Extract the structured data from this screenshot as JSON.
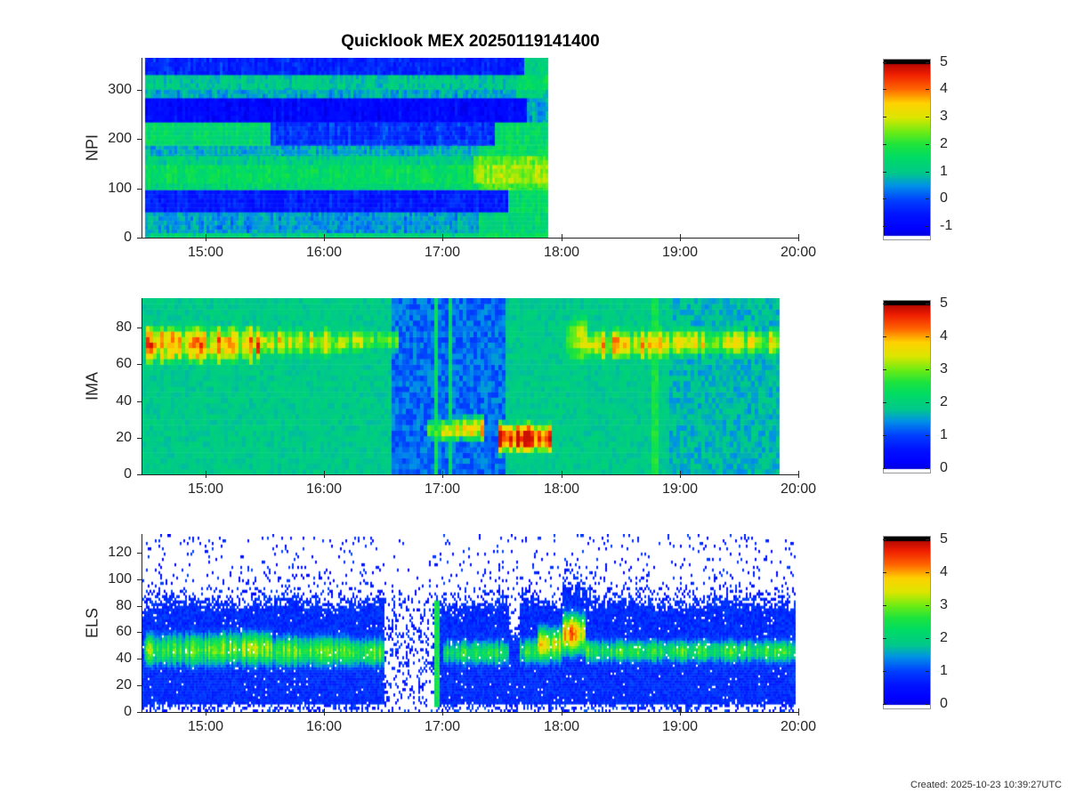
{
  "title": "Quicklook MEX 20250119141400",
  "created_note": "Created: 2025-10-23 10:39:27UTC",
  "axis_color": "#262626",
  "colormap": [
    [
      0,
      "#0000C8"
    ],
    [
      0.06,
      "#0000FF"
    ],
    [
      0.14,
      "#0014FF"
    ],
    [
      0.22,
      "#0040FF"
    ],
    [
      0.3,
      "#0090E8"
    ],
    [
      0.37,
      "#00C88C"
    ],
    [
      0.46,
      "#00DC64"
    ],
    [
      0.53,
      "#1EE43C"
    ],
    [
      0.6,
      "#6EEC14"
    ],
    [
      0.68,
      "#DCE600"
    ],
    [
      0.76,
      "#FFD200"
    ],
    [
      0.84,
      "#FF6400"
    ],
    [
      0.92,
      "#F01E00"
    ],
    [
      1,
      "#A00000"
    ]
  ],
  "x_axis": {
    "min_hour": 14.4667,
    "max_hour": 20,
    "ticks": [
      15,
      16,
      17,
      18,
      19,
      20
    ],
    "tick_labels": [
      "15:00",
      "16:00",
      "17:00",
      "18:00",
      "19:00",
      "20:00"
    ]
  },
  "chart_data": [
    {
      "type": "heatmap",
      "id": "npi",
      "ylabel": "NPI",
      "y_range": [
        0,
        364
      ],
      "y_ticks": [
        0,
        100,
        200,
        300
      ],
      "x_ticks_labels": [
        "15:00",
        "16:00",
        "17:00",
        "18:00",
        "19:00",
        "20:00"
      ],
      "data_start_hour": 14.4667,
      "data_end_hour": 17.87,
      "colorbar": {
        "ticks": [
          5,
          4,
          3,
          2,
          1,
          0,
          -1
        ],
        "vmin": -1.45,
        "vmax": 5.12
      },
      "noise": 0.3,
      "bands": [
        {
          "y0": 0,
          "y1": 10,
          "segs": [
            [
              14.47,
              17.3,
              1.25
            ],
            [
              17.3,
              17.87,
              1.6
            ]
          ]
        },
        {
          "y0": 10,
          "y1": 52,
          "segs": [
            [
              14.47,
              17.3,
              0.6
            ],
            [
              17.3,
              17.87,
              1.35
            ]
          ]
        },
        {
          "y0": 52,
          "y1": 97,
          "segs": [
            [
              14.47,
              17.55,
              -0.45
            ],
            [
              17.55,
              17.87,
              1.4
            ]
          ]
        },
        {
          "y0": 97,
          "y1": 110,
          "segs": [
            [
              14.47,
              17.3,
              1.35
            ],
            [
              17.3,
              17.87,
              2.2
            ]
          ]
        },
        {
          "y0": 110,
          "y1": 148,
          "segs": [
            [
              14.47,
              17.25,
              1.6
            ],
            [
              17.25,
              17.87,
              2.7
            ]
          ]
        },
        {
          "y0": 148,
          "y1": 166,
          "segs": [
            [
              14.47,
              17.25,
              1.2
            ],
            [
              17.25,
              17.87,
              2.4
            ]
          ]
        },
        {
          "y0": 166,
          "y1": 187,
          "segs": [
            [
              14.47,
              17.3,
              0.75
            ],
            [
              17.3,
              17.87,
              1.6
            ]
          ]
        },
        {
          "y0": 187,
          "y1": 234,
          "segs": [
            [
              14.47,
              15.53,
              1.45
            ],
            [
              15.53,
              17.43,
              -0.15
            ],
            [
              17.43,
              17.87,
              1.55
            ]
          ]
        },
        {
          "y0": 234,
          "y1": 283,
          "segs": [
            [
              14.47,
              17.7,
              -0.8
            ],
            [
              17.7,
              17.87,
              0.7
            ]
          ]
        },
        {
          "y0": 283,
          "y1": 300,
          "segs": [
            [
              14.47,
              17.6,
              0.7
            ],
            [
              17.6,
              17.87,
              1.2
            ]
          ]
        },
        {
          "y0": 300,
          "y1": 330,
          "segs": [
            [
              14.47,
              17.6,
              1.05
            ],
            [
              17.6,
              17.87,
              1.6
            ]
          ]
        },
        {
          "y0": 330,
          "y1": 364,
          "segs": [
            [
              14.47,
              17.67,
              -0.35
            ],
            [
              17.67,
              17.87,
              1.3
            ]
          ]
        }
      ]
    },
    {
      "type": "heatmap",
      "id": "ima",
      "ylabel": "IMA",
      "y_range": [
        0,
        96
      ],
      "y_ticks": [
        0,
        20,
        40,
        60,
        80
      ],
      "data_start_hour": 14.4667,
      "data_end_hour": 19.83,
      "colorbar": {
        "ticks": [
          5,
          4,
          3,
          2,
          1,
          0
        ],
        "vmin": -0.12,
        "vmax": 5.12
      },
      "background_value": 1.9,
      "background_noise": 0.18,
      "regions": [
        {
          "t0": 16.55,
          "t1": 17.5,
          "y0": 0,
          "y1": 96,
          "v": 1.25,
          "noise": 0.3
        },
        {
          "t0": 18.9,
          "t1": 19.83,
          "y0": 0,
          "y1": 96,
          "v": 1.7,
          "noise": 0.3
        }
      ],
      "blobs": [
        {
          "t0": 14.47,
          "t1": 15.45,
          "yc": 71,
          "h": 16,
          "v": 3.7,
          "jitter": 0.45
        },
        {
          "t0": 15.45,
          "t1": 16.15,
          "yc": 72,
          "h": 13,
          "v": 3.3,
          "jitter": 0.35
        },
        {
          "t0": 16.15,
          "t1": 16.6,
          "yc": 73,
          "h": 11,
          "v": 2.9,
          "jitter": 0.3
        },
        {
          "t0": 16.85,
          "t1": 17.08,
          "yc": 24,
          "h": 9,
          "v": 3.1,
          "jitter": 0.45
        },
        {
          "t0": 17.1,
          "t1": 17.33,
          "yc": 25,
          "h": 10,
          "v": 3.5,
          "jitter": 0.45
        },
        {
          "t0": 17.45,
          "t1": 17.9,
          "yc": 20,
          "h": 11,
          "v": 4.6,
          "jitter": 0.25
        },
        {
          "t0": 18.02,
          "t1": 18.22,
          "yc": 74,
          "h": 24,
          "v": 3.1,
          "jitter": 0.3
        },
        {
          "t0": 18.22,
          "t1": 18.9,
          "yc": 71,
          "h": 13,
          "v": 3.55,
          "jitter": 0.3
        },
        {
          "t0": 18.9,
          "t1": 19.83,
          "yc": 72,
          "h": 13,
          "v": 3.15,
          "jitter": 0.3
        }
      ],
      "vlines": [
        {
          "t": 16.93,
          "w": 0.04,
          "v": 2.35
        },
        {
          "t": 17.06,
          "w": 0.03,
          "v": 2.25
        },
        {
          "t": 18.78,
          "w": 0.07,
          "v": 2.55
        }
      ]
    },
    {
      "type": "heatmap",
      "id": "els",
      "ylabel": "ELS",
      "y_range": [
        0,
        134
      ],
      "y_ticks": [
        0,
        20,
        40,
        60,
        80,
        100,
        120
      ],
      "data_start_hour": 14.4667,
      "data_end_hour": 19.97,
      "colorbar": {
        "ticks": [
          5,
          4,
          3,
          2,
          1,
          0
        ],
        "vmin": -0.12,
        "vmax": 5.12
      },
      "band": {
        "y0": 6,
        "y1": 84,
        "edge_value": 0.85
      },
      "cores": [
        {
          "t0": 14.47,
          "t1": 15.1,
          "yc": 46,
          "h": 26,
          "v": 2.65
        },
        {
          "t0": 15.1,
          "t1": 15.55,
          "yc": 47,
          "h": 26,
          "v": 2.95
        },
        {
          "t0": 15.55,
          "t1": 16.2,
          "yc": 45,
          "h": 24,
          "v": 2.7
        },
        {
          "t0": 16.2,
          "t1": 16.5,
          "yc": 44,
          "h": 22,
          "v": 2.75
        },
        {
          "t0": 17.0,
          "t1": 17.55,
          "yc": 44,
          "h": 20,
          "v": 2.3
        },
        {
          "t0": 17.65,
          "t1": 17.8,
          "yc": 45,
          "h": 20,
          "v": 2.4
        },
        {
          "t0": 17.8,
          "t1": 18.0,
          "yc": 50,
          "h": 26,
          "v": 3.3
        },
        {
          "t0": 18.0,
          "t1": 18.2,
          "yc": 58,
          "h": 30,
          "v": 4.1
        },
        {
          "t0": 18.2,
          "t1": 19.97,
          "yc": 45,
          "h": 18,
          "v": 2.45
        }
      ],
      "gaps": [
        {
          "t0": 16.5,
          "t1": 16.92
        }
      ],
      "notches": [
        {
          "t0": 17.55,
          "t1": 17.65,
          "top": 58
        }
      ],
      "burst_top": {
        "t0": 18.0,
        "t1": 18.25,
        "top": 96
      },
      "vlines": [
        {
          "t": 16.94,
          "w": 0.04,
          "v": 2.45,
          "y0": 4,
          "y1": 82
        }
      ],
      "speckle": {
        "base_density": 0.05,
        "edge_density": 0.3,
        "falloff": 9,
        "below_density": 0.4
      }
    }
  ]
}
